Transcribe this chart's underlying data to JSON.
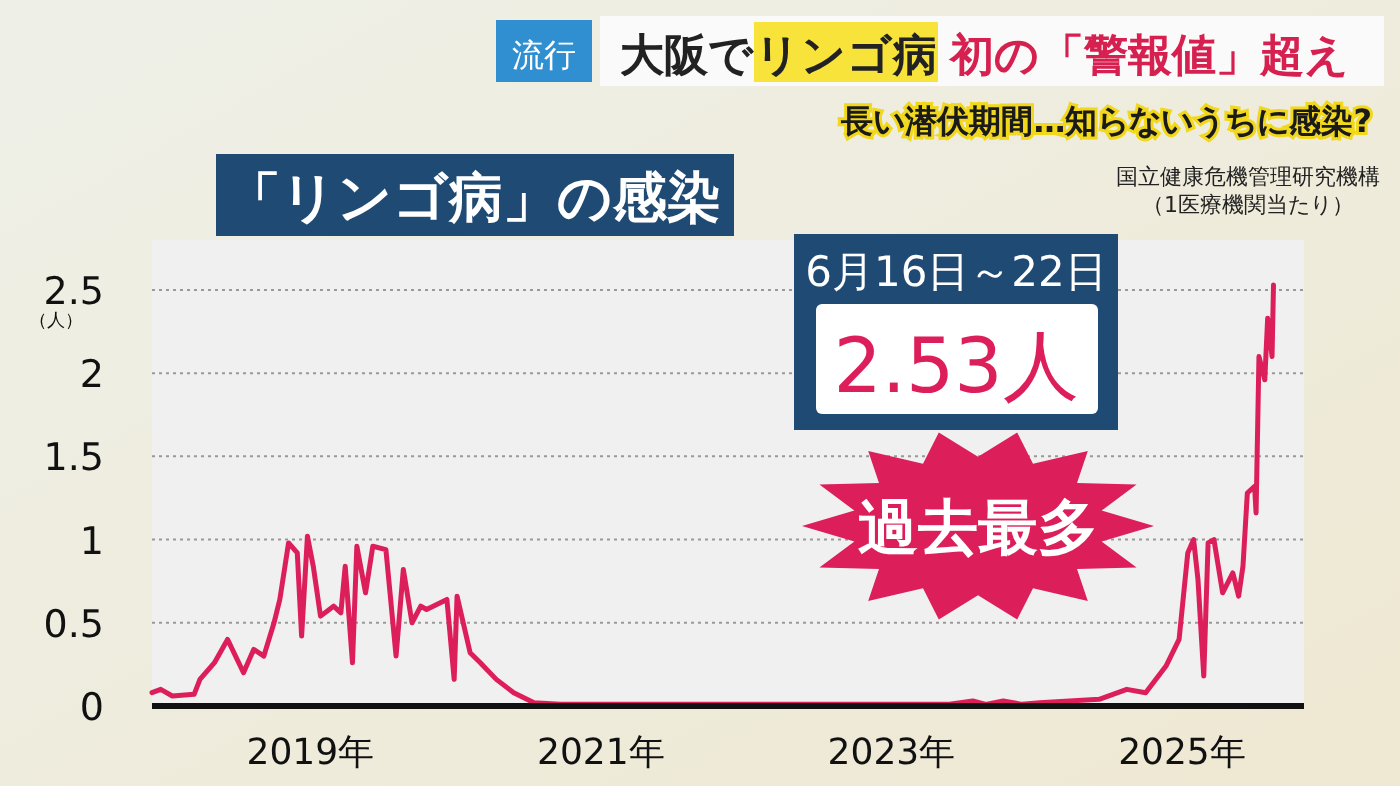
{
  "chart_data": {
    "type": "line",
    "title": "「リンゴ病」の感染",
    "ylabel": "（人）",
    "annotations": [
      "流行",
      "大阪で",
      "リンゴ病",
      "初の「警報値」超え",
      "長い潜伏期間…知らないうちに感染?",
      "国立健康危機管理研究機構",
      "（1医療機関当たり）",
      "6月16日～22日",
      "2.53人",
      "過去最多"
    ],
    "xlim": [
      2017.91,
      2025.84
    ],
    "ylim": [
      0,
      2.8
    ],
    "xticks": [
      {
        "value": 2019,
        "label": "2019年"
      },
      {
        "value": 2021,
        "label": "2021年"
      },
      {
        "value": 2023,
        "label": "2023年"
      },
      {
        "value": 2025,
        "label": "2025年"
      }
    ],
    "yticks": [
      0,
      0.5,
      1,
      1.5,
      2,
      2.5
    ],
    "grid": "y",
    "marker": "none",
    "line_style": "solid",
    "series": [
      {
        "color": "#dc1e5a",
        "x": [
          2017.91,
          2017.97,
          2018.05,
          2018.2,
          2018.24,
          2018.34,
          2018.43,
          2018.54,
          2018.61,
          2018.68,
          2018.75,
          2018.79,
          2018.85,
          2018.91,
          2018.94,
          2018.98,
          2019.02,
          2019.07,
          2019.16,
          2019.21,
          2019.24,
          2019.29,
          2019.32,
          2019.38,
          2019.43,
          2019.52,
          2019.59,
          2019.64,
          2019.7,
          2019.76,
          2019.8,
          2019.94,
          2019.99,
          2020.01,
          2020.1,
          2020.17,
          2020.28,
          2020.4,
          2020.54,
          2020.72,
          2021.5,
          2022.5,
          2023.4,
          2023.56,
          2023.65,
          2023.77,
          2023.9,
          2024.02,
          2024.43,
          2024.62,
          2024.75,
          2024.89,
          2024.98,
          2025.04,
          2025.08,
          2025.11,
          2025.15,
          2025.18,
          2025.22,
          2025.28,
          2025.35,
          2025.39,
          2025.42,
          2025.45,
          2025.5,
          2025.51,
          2025.53,
          2025.57,
          2025.59,
          2025.62,
          2025.63
        ],
        "values": [
          0.08,
          0.1,
          0.06,
          0.07,
          0.16,
          0.26,
          0.4,
          0.2,
          0.34,
          0.3,
          0.5,
          0.64,
          0.98,
          0.92,
          0.42,
          1.02,
          0.84,
          0.54,
          0.6,
          0.56,
          0.84,
          0.26,
          0.96,
          0.68,
          0.96,
          0.94,
          0.3,
          0.82,
          0.5,
          0.6,
          0.58,
          0.64,
          0.16,
          0.66,
          0.32,
          0.26,
          0.16,
          0.08,
          0.02,
          0.01,
          0.01,
          0.01,
          0.01,
          0.03,
          0.01,
          0.03,
          0.01,
          0.02,
          0.04,
          0.1,
          0.08,
          0.24,
          0.4,
          0.92,
          1.0,
          0.76,
          0.18,
          0.98,
          1.0,
          0.68,
          0.8,
          0.66,
          0.84,
          1.28,
          1.32,
          1.16,
          2.1,
          1.96,
          2.33,
          2.1,
          2.53
        ]
      }
    ]
  }
}
